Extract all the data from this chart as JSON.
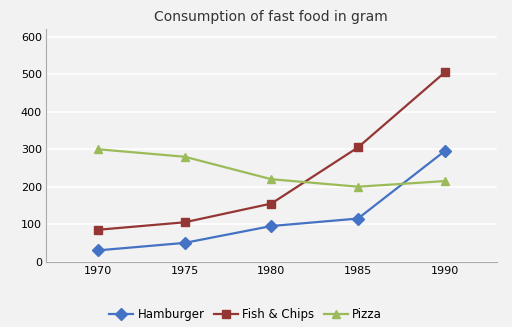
{
  "title": "Consumption of fast food in gram",
  "years": [
    1970,
    1975,
    1980,
    1985,
    1990
  ],
  "series": [
    {
      "name": "Hamburger",
      "values": [
        30,
        50,
        95,
        115,
        295
      ],
      "color": "#4472C4",
      "marker": "D",
      "markersize": 6
    },
    {
      "name": "Fish & Chips",
      "values": [
        85,
        105,
        155,
        305,
        505
      ],
      "color": "#943634",
      "marker": "s",
      "markersize": 6
    },
    {
      "name": "Pizza",
      "values": [
        300,
        280,
        220,
        200,
        215
      ],
      "color": "#9BBB59",
      "marker": "^",
      "markersize": 6
    }
  ],
  "xlim": [
    1967,
    1993
  ],
  "ylim": [
    0,
    620
  ],
  "yticks": [
    0,
    100,
    200,
    300,
    400,
    500,
    600
  ],
  "xticks": [
    1970,
    1975,
    1980,
    1985,
    1990
  ],
  "fig_bg_color": "#F2F2F2",
  "plot_bg_color": "#F2F2F2",
  "grid_color": "#FFFFFF",
  "spine_color": "#AAAAAA",
  "title_fontsize": 10,
  "tick_fontsize": 8,
  "legend_fontsize": 8.5,
  "legend_ncol": 3
}
